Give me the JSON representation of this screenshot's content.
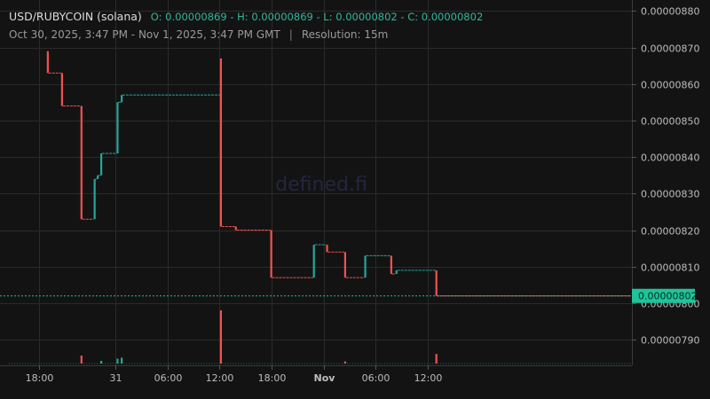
{
  "header": {
    "symbol": "USD/RUBYCOIN (solana)",
    "ohlc": "O: 0.00000869 - H: 0.00000869 - L: 0.00000802 - C: 0.00000802",
    "range": "Oct 30, 2025, 3:47 PM - Nov 1, 2025, 3:47 PM GMT",
    "separator": "|",
    "resolution": "Resolution: 15m"
  },
  "watermark": "defined.fi",
  "last_price_label": "0.00000802",
  "colors": {
    "up": "#26a69a",
    "down": "#ef5350",
    "tag_bg": "#1fc49a",
    "background": "#131313",
    "grid": "#2a2a2a"
  },
  "chart_data": {
    "type": "candlestick",
    "y_ticks": [
      "0.00000880",
      "0.00000870",
      "0.00000860",
      "0.00000850",
      "0.00000840",
      "0.00000830",
      "0.00000820",
      "0.00000810",
      "0.00000800",
      "0.00000790"
    ],
    "ylim": [
      7.83e-06,
      8.83e-06
    ],
    "x_ticks": [
      {
        "label": "18:00",
        "t": 15.2
      },
      {
        "label": "31",
        "t": 24
      },
      {
        "label": "06:00",
        "t": 30
      },
      {
        "label": "12:00",
        "t": 36
      },
      {
        "label": "18:00",
        "t": 42
      },
      {
        "label": "Nov",
        "t": 48
      },
      {
        "label": "06:00",
        "t": 54
      },
      {
        "label": "12:00",
        "t": 60
      }
    ],
    "last_price": 8.02e-06,
    "candles": [
      {
        "t": 16.2,
        "o": 8.69e-06,
        "c": 8.63e-06,
        "v": 0
      },
      {
        "t": 17.84,
        "o": 8.63e-06,
        "c": 8.54e-06,
        "v": 0
      },
      {
        "t": 20.08,
        "o": 8.54e-06,
        "c": 8.23e-06,
        "v": 0.15
      },
      {
        "t": 21.6,
        "o": 8.23e-06,
        "c": 8.34e-06,
        "v": 0
      },
      {
        "t": 21.96,
        "o": 8.34e-06,
        "c": 8.35e-06,
        "v": 0
      },
      {
        "t": 22.36,
        "o": 8.35e-06,
        "c": 8.41e-06,
        "v": 0.05
      },
      {
        "t": 24.24,
        "o": 8.41e-06,
        "c": 8.55e-06,
        "v": 0.09
      },
      {
        "t": 24.72,
        "o": 8.55e-06,
        "c": 8.57e-06,
        "v": 0.11
      },
      {
        "t": 36.16,
        "o": 8.67e-06,
        "c": 8.21e-06,
        "v": 1.0
      },
      {
        "t": 37.88,
        "o": 8.21e-06,
        "c": 8.2e-06,
        "v": 0
      },
      {
        "t": 41.96,
        "o": 8.2e-06,
        "c": 8.07e-06,
        "v": 0
      },
      {
        "t": 46.88,
        "o": 8.07e-06,
        "c": 8.16e-06,
        "v": 0
      },
      {
        "t": 48.4,
        "o": 8.16e-06,
        "c": 8.14e-06,
        "v": 0
      },
      {
        "t": 50.48,
        "o": 8.14e-06,
        "c": 8.07e-06,
        "v": 0.04
      },
      {
        "t": 52.8,
        "o": 8.07e-06,
        "c": 8.13e-06,
        "v": 0
      },
      {
        "t": 55.8,
        "o": 8.13e-06,
        "c": 8.08e-06,
        "v": 0
      },
      {
        "t": 56.4,
        "o": 8.08e-06,
        "c": 8.09e-06,
        "v": 0
      },
      {
        "t": 61.0,
        "o": 8.09e-06,
        "c": 8.02e-06,
        "v": 0.18
      }
    ]
  }
}
